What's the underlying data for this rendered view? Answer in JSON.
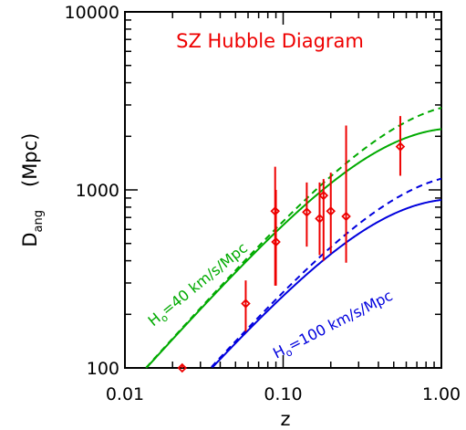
{
  "chart_data": {
    "type": "scatter",
    "title": "SZ Hubble Diagram",
    "xlabel": "z",
    "ylabel": "D",
    "ylabel_subscript": "ang",
    "ylabel_units": "(Mpc)",
    "xscale": "log",
    "yscale": "log",
    "xlim": [
      0.01,
      1.0
    ],
    "ylim": [
      100,
      10000
    ],
    "xticks": [
      {
        "value": 0.01,
        "label": "0.01"
      },
      {
        "value": 0.1,
        "label": "0.10"
      },
      {
        "value": 1.0,
        "label": "1.00"
      }
    ],
    "yticks": [
      {
        "value": 100,
        "label": "100"
      },
      {
        "value": 1000,
        "label": "1000"
      },
      {
        "value": 10000,
        "label": "10000"
      }
    ],
    "colors": {
      "data": "#ee0000",
      "h40": "#00aa00",
      "h100": "#0000dd",
      "title": "#ee0000"
    },
    "annotations": [
      {
        "key": "h40",
        "text": "H",
        "sub": "o",
        "rest": "=40 km/s/Mpc",
        "color": "#00aa00"
      },
      {
        "key": "h100",
        "text": "H",
        "sub": "o",
        "rest": "=100 km/s/Mpc",
        "color": "#0000dd"
      }
    ],
    "model_curves": [
      {
        "key": "h40-solid",
        "H0": 40,
        "omega_m": 1.0,
        "omega_l": 0.0,
        "dashed": false,
        "color": "#00aa00"
      },
      {
        "key": "h40-dashed",
        "H0": 40,
        "omega_m": 0.3,
        "omega_l": 0.7,
        "dashed": true,
        "color": "#00aa00"
      },
      {
        "key": "h100-solid",
        "H0": 100,
        "omega_m": 1.0,
        "omega_l": 0.0,
        "dashed": false,
        "color": "#0000dd"
      },
      {
        "key": "h100-dashed",
        "H0": 100,
        "omega_m": 0.3,
        "omega_l": 0.7,
        "dashed": true,
        "color": "#0000dd"
      }
    ],
    "points": [
      {
        "z": 0.023,
        "d": 100,
        "lo": 98,
        "hi": 103
      },
      {
        "z": 0.058,
        "d": 230,
        "lo": 160,
        "hi": 310
      },
      {
        "z": 0.089,
        "d": 760,
        "lo": 290,
        "hi": 1350
      },
      {
        "z": 0.09,
        "d": 510,
        "lo": 290,
        "hi": 1000
      },
      {
        "z": 0.141,
        "d": 750,
        "lo": 480,
        "hi": 1100
      },
      {
        "z": 0.17,
        "d": 690,
        "lo": 430,
        "hi": 1100
      },
      {
        "z": 0.18,
        "d": 930,
        "lo": 400,
        "hi": 1150
      },
      {
        "z": 0.2,
        "d": 760,
        "lo": 440,
        "hi": 1250
      },
      {
        "z": 0.25,
        "d": 710,
        "lo": 390,
        "hi": 2300
      },
      {
        "z": 0.55,
        "d": 1750,
        "lo": 1200,
        "hi": 2600
      }
    ]
  }
}
